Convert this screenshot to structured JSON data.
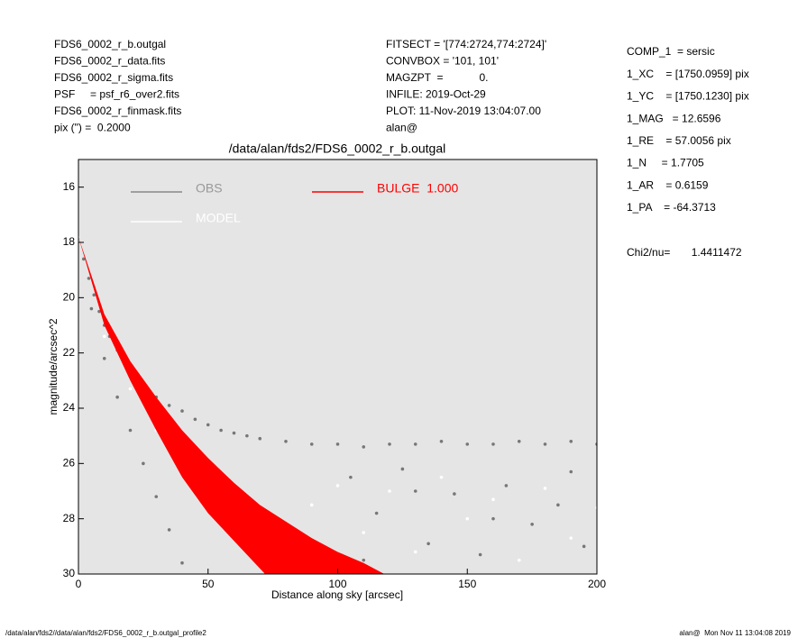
{
  "header": {
    "left": [
      "FDS6_0002_r_b.outgal",
      "FDS6_0002_r_data.fits",
      "FDS6_0002_r_sigma.fits",
      "PSF     = psf_r6_over2.fits",
      "FDS6_0002_r_finmask.fits",
      "pix (\") =  0.2000"
    ],
    "middle": [
      "FITSECT = '[774:2724,774:2724]'",
      "CONVBOX = '101, 101'",
      "MAGZPT  =            0.",
      "INFILE: 2019-Oct-29",
      "PLOT: 11-Nov-2019 13:04:07.00",
      "alan@"
    ]
  },
  "params": [
    "COMP_1  = sersic",
    "1_XC    = [1750.0959] pix",
    "1_YC    = [1750.1230] pix",
    "1_MAG   = 12.6596",
    "1_RE    = 57.0056 pix",
    "1_N     = 1.7705",
    "1_AR    = 0.6159",
    "1_PA    = -64.3713"
  ],
  "chi2": "Chi2/nu=       1.4411472",
  "footer": {
    "left": "/data/alan/fds2//data/alan/fds2/FDS6_0002_r_b.outgal_profile2",
    "right": "alan@  Mon Nov 11 13:04:08 2019"
  },
  "chart_data": {
    "type": "scatter",
    "title": "/data/alan/fds2/FDS6_0002_r_b.outgal",
    "x_label": "Distance along sky [arcsec]",
    "y_label": "magnitude/arcsec^2",
    "xlim": [
      0,
      200
    ],
    "xticks": [
      0,
      50,
      100,
      150,
      200
    ],
    "ylim": [
      15,
      30
    ],
    "yticks": [
      16,
      18,
      20,
      22,
      24,
      26,
      28,
      30
    ],
    "y_inverted": true,
    "series": [
      {
        "name": "OBS",
        "color": "#777777",
        "x": [
          0,
          2,
          4,
          6,
          8,
          10,
          12,
          15,
          18,
          20,
          25,
          30,
          35,
          40,
          45,
          50,
          55,
          60,
          65,
          70,
          80,
          90,
          100,
          110,
          120,
          130,
          140,
          150,
          160,
          170,
          180,
          190,
          200,
          5,
          10,
          15,
          20,
          25,
          30,
          35,
          40,
          105,
          115,
          125,
          135,
          145,
          155,
          165,
          175,
          185,
          195,
          110,
          160,
          190,
          130
        ],
        "values": [
          17.8,
          18.6,
          19.3,
          19.9,
          20.5,
          21.0,
          21.4,
          21.9,
          22.4,
          22.7,
          23.2,
          23.6,
          23.9,
          24.1,
          24.4,
          24.6,
          24.8,
          24.9,
          25.0,
          25.1,
          25.2,
          25.3,
          25.3,
          25.4,
          25.3,
          25.3,
          25.2,
          25.3,
          25.3,
          25.2,
          25.3,
          25.2,
          25.3,
          20.4,
          22.2,
          23.6,
          24.8,
          26.0,
          27.2,
          28.4,
          29.6,
          26.5,
          27.8,
          26.2,
          28.9,
          27.1,
          29.3,
          26.8,
          28.2,
          27.5,
          29.0,
          29.5,
          28.0,
          26.3,
          27.0
        ]
      },
      {
        "name": "MODEL",
        "color": "#ffffff",
        "x": [
          0,
          10,
          20,
          30,
          40,
          50,
          60,
          70,
          80,
          90,
          100,
          110,
          120,
          130,
          140,
          150,
          160,
          170,
          180,
          190,
          200
        ],
        "values": [
          17.8,
          21.4,
          23.3,
          24.8,
          26.2,
          27.3,
          28.3,
          29.2,
          29.9,
          27.5,
          26.8,
          28.5,
          27.0,
          29.2,
          26.5,
          28.0,
          27.3,
          29.5,
          26.9,
          28.7,
          27.6
        ]
      },
      {
        "name": "BULGE  1.000",
        "color": "#ff0000",
        "x": [
          0,
          10,
          20,
          30,
          40,
          50,
          60,
          70,
          80,
          90,
          100,
          110,
          118
        ],
        "values": [
          17.8,
          20.6,
          22.3,
          23.6,
          24.8,
          25.8,
          26.7,
          27.5,
          28.1,
          28.7,
          29.2,
          29.6,
          30
        ],
        "x_low": [
          0,
          10,
          20,
          30,
          40,
          50,
          60,
          72
        ],
        "values_low": [
          17.8,
          21.0,
          23.0,
          24.8,
          26.5,
          27.8,
          28.8,
          30
        ]
      }
    ]
  }
}
